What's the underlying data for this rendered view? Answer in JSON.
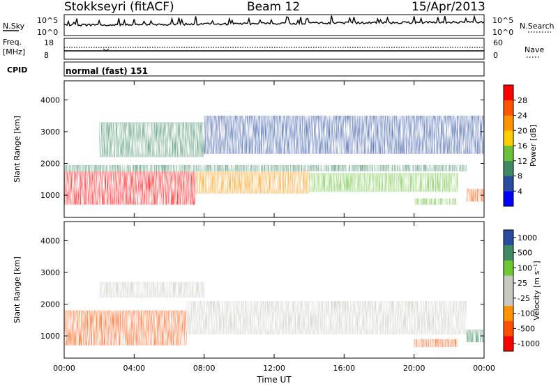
{
  "header": {
    "station": "Stokkseyri (fitACF)",
    "beam": "Beam 12",
    "date": "15/Apr/2013"
  },
  "top_panels": {
    "nsky_label": "N.Sky",
    "nsky_ticks": [
      "10^5",
      "10^0"
    ],
    "nsearch_label": "N.Search",
    "nsearch_ticks": [
      "10^5",
      "10^0"
    ],
    "freq_label": "Freq.",
    "freq_unit": "[MHz]",
    "freq_ticks": [
      "18",
      "8"
    ],
    "nave_label": "Nave",
    "nave_ticks": [
      "60",
      "0"
    ],
    "cpid_label": "CPID",
    "cpid_value": "normal (fast) 151"
  },
  "colors": {
    "power_scale": [
      "#0000ff",
      "#2a4c9f",
      "#3f8a63",
      "#6bc23a",
      "#ffcc00",
      "#ff9400",
      "#ff5400",
      "#ff0000"
    ],
    "velocity_scale": [
      "#ff0000",
      "#ff5000",
      "#ff9400",
      "#c8c8c0",
      "#c8c8c0",
      "#6ec833",
      "#3f8a63",
      "#2a4c9f"
    ]
  },
  "chart_data": [
    {
      "type": "heatmap",
      "name": "power",
      "ylabel": "Slant Range [km]",
      "y_ticks": [
        "1000",
        "2000",
        "3000",
        "4000"
      ],
      "ylim": [
        300,
        4600
      ],
      "xlim": [
        "00:00",
        "24:00"
      ],
      "x_ticks": [
        "00:00",
        "04:00",
        "08:00",
        "12:00",
        "16:00",
        "20:00",
        "00:00"
      ],
      "colorbar_label": "Power [dB]",
      "colorbar_ticks": [
        "4",
        "8",
        "12",
        "16",
        "20",
        "24",
        "28"
      ],
      "colorbar_range": [
        0,
        32
      ],
      "regions": [
        {
          "x": [
            0.0,
            7.5
          ],
          "y": [
            700,
            1800
          ],
          "value": 28
        },
        {
          "x": [
            7.5,
            14.0
          ],
          "y": [
            1050,
            1750
          ],
          "value": 20
        },
        {
          "x": [
            14.0,
            22.5
          ],
          "y": [
            1100,
            1700
          ],
          "value": 12
        },
        {
          "x": [
            0.0,
            23.0
          ],
          "y": [
            1750,
            1950
          ],
          "value": 10
        },
        {
          "x": [
            2.0,
            8.0
          ],
          "y": [
            2200,
            3300
          ],
          "value": 10
        },
        {
          "x": [
            8.0,
            24.0
          ],
          "y": [
            2300,
            3500
          ],
          "value": 4
        },
        {
          "x": [
            20.0,
            22.5
          ],
          "y": [
            700,
            900
          ],
          "value": 14
        },
        {
          "x": [
            23.0,
            24.0
          ],
          "y": [
            800,
            1200
          ],
          "value": 26
        }
      ]
    },
    {
      "type": "heatmap",
      "name": "velocity",
      "ylabel": "Slant Range [km]",
      "y_ticks": [
        "1000",
        "2000",
        "3000",
        "4000"
      ],
      "ylim": [
        300,
        4600
      ],
      "xlim": [
        "00:00",
        "24:00"
      ],
      "x_ticks": [
        "00:00",
        "04:00",
        "08:00",
        "12:00",
        "16:00",
        "20:00",
        "00:00"
      ],
      "xlabel": "Time UT",
      "colorbar_label": "Velocity [m s⁻¹]",
      "colorbar_ticks": [
        "-1000",
        "-500",
        "-100",
        "-25",
        "25",
        "100",
        "500",
        "1000"
      ],
      "regions": [
        {
          "x": [
            0.0,
            7.0
          ],
          "y": [
            700,
            1800
          ],
          "value": -300
        },
        {
          "x": [
            7.0,
            23.0
          ],
          "y": [
            1050,
            2100
          ],
          "value": 0
        },
        {
          "x": [
            2.0,
            8.0
          ],
          "y": [
            2200,
            2700
          ],
          "value": 0
        },
        {
          "x": [
            20.0,
            22.5
          ],
          "y": [
            650,
            900
          ],
          "value": -300
        },
        {
          "x": [
            23.0,
            24.0
          ],
          "y": [
            800,
            1200
          ],
          "value": 500
        }
      ]
    }
  ]
}
